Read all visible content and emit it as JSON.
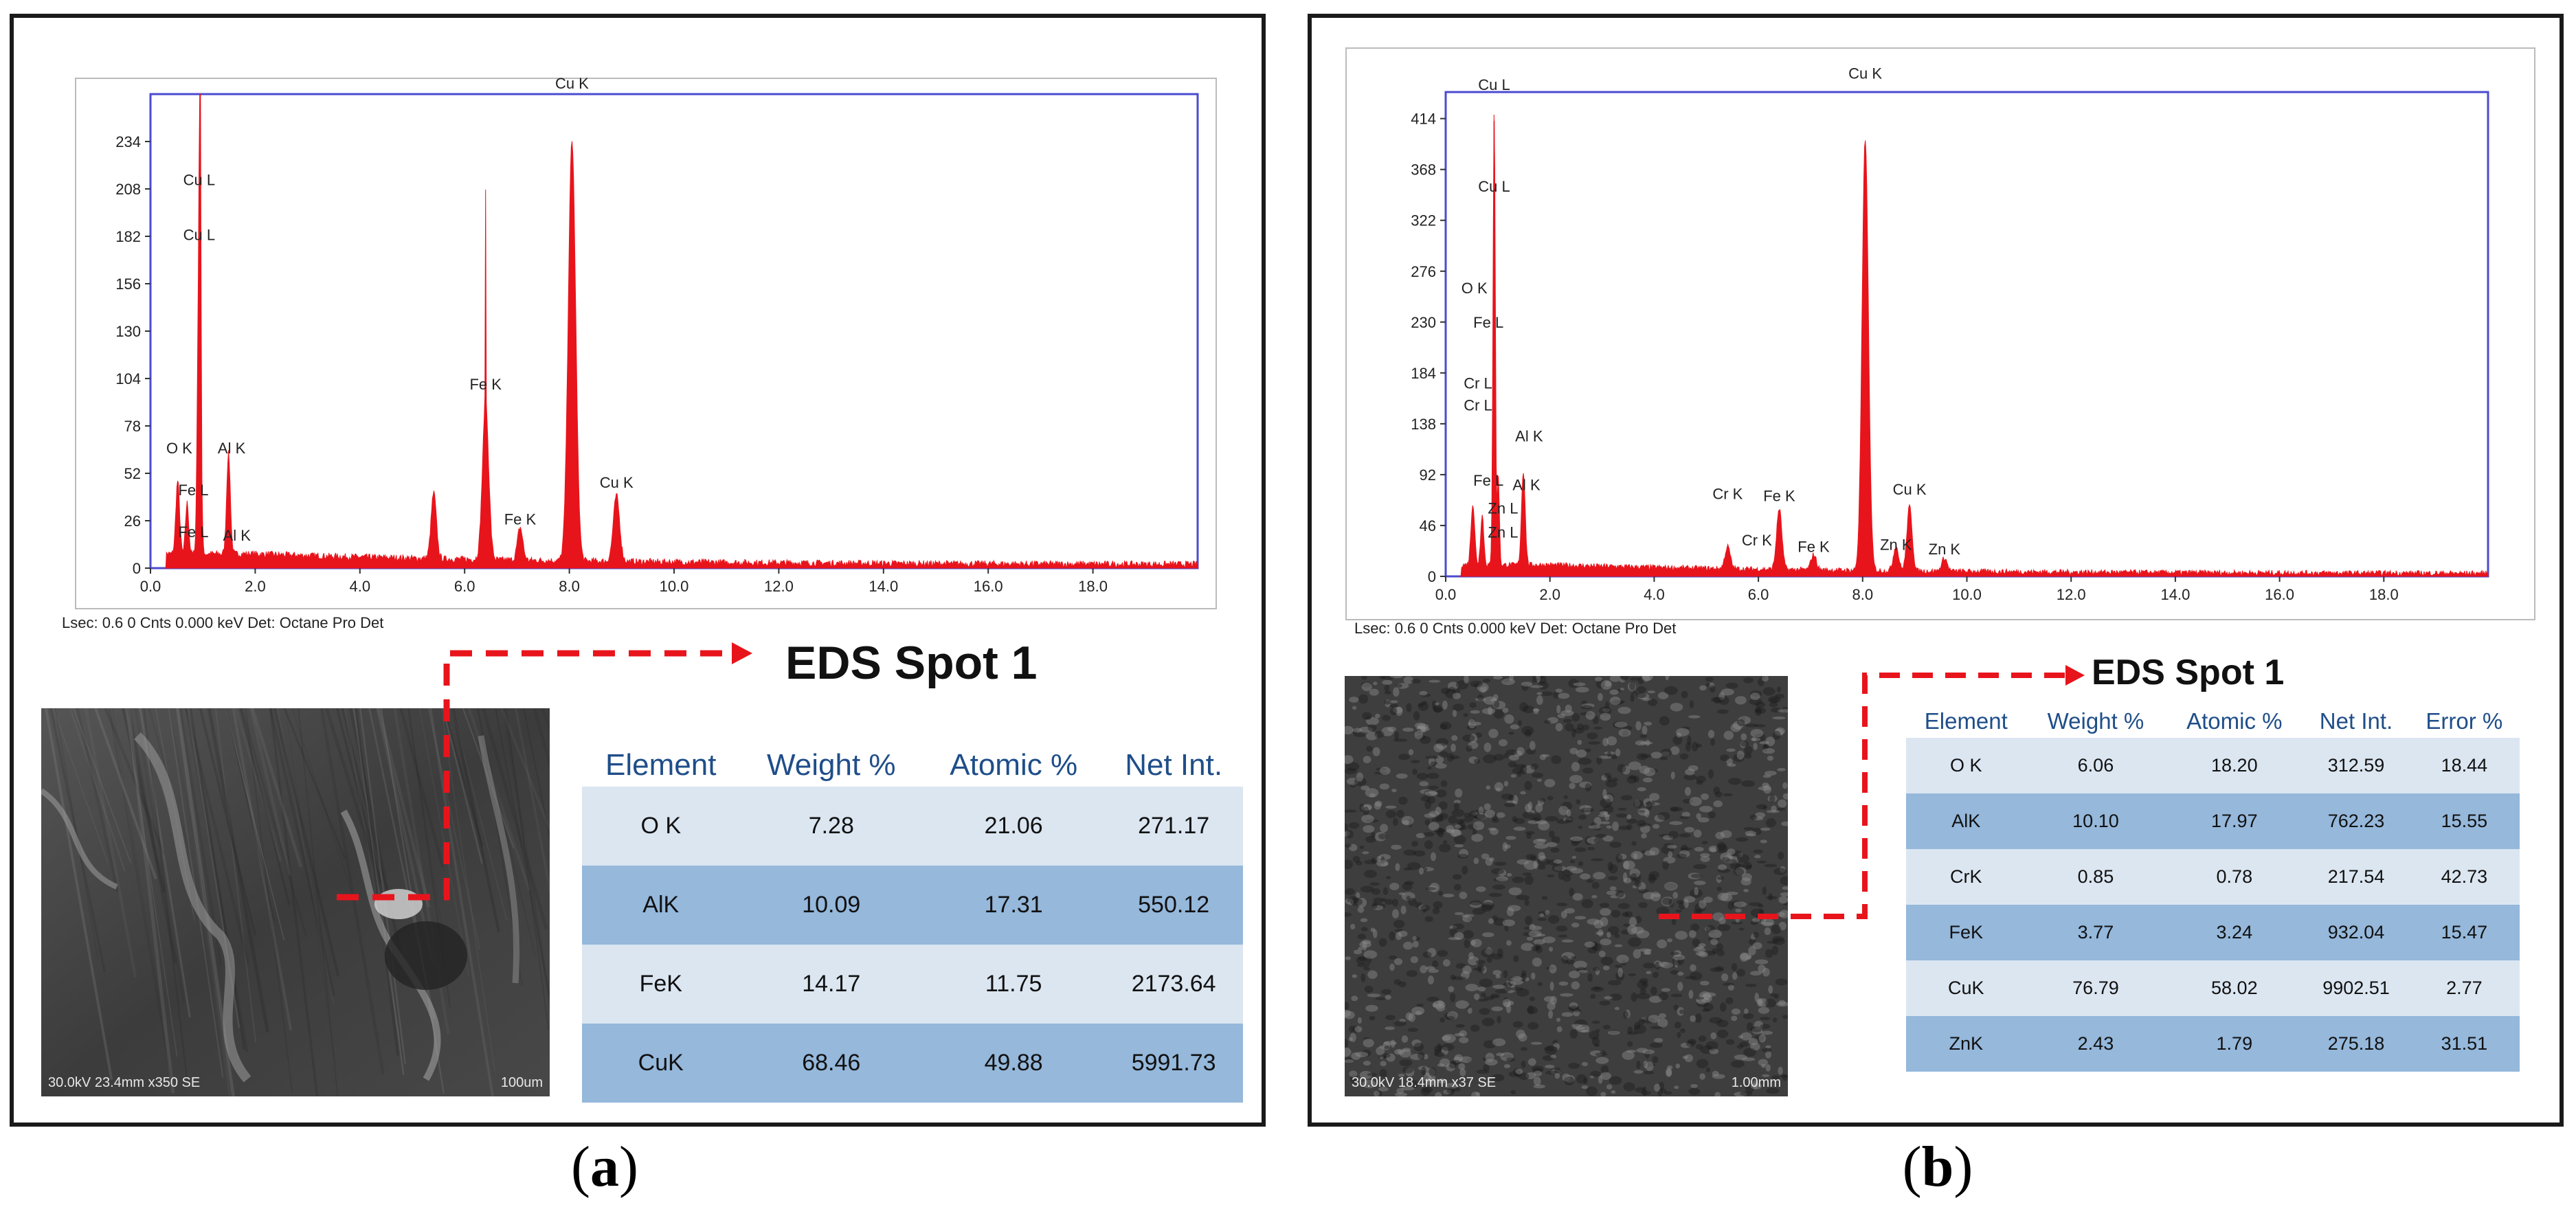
{
  "figure": {
    "panels": [
      {
        "caption_letter": "a",
        "detector_info": "Lsec: 0.6 0 Cnts  0.000 keV Det: Octane Pro Det",
        "spot_title": "EDS Spot 1",
        "sem_info": {
          "left": "30.0kV 23.4mm x350 SE",
          "right": "100um"
        },
        "table": {
          "headers": [
            "Element",
            "Weight %",
            "Atomic %",
            "Net Int."
          ],
          "rows": [
            [
              "O K",
              "7.28",
              "21.06",
              "271.17"
            ],
            [
              "AlK",
              "10.09",
              "17.31",
              "550.12"
            ],
            [
              "FeK",
              "14.17",
              "11.75",
              "2173.64"
            ],
            [
              "CuK",
              "68.46",
              "49.88",
              "5991.73"
            ]
          ]
        }
      },
      {
        "caption_letter": "b",
        "detector_info": "Lsec: 0.6 0 Cnts  0.000 keV Det: Octane Pro Det",
        "spot_title": "EDS Spot 1",
        "sem_info": {
          "left": "30.0kV 18.4mm x37 SE",
          "right": "1.00mm"
        },
        "table": {
          "headers": [
            "Element",
            "Weight %",
            "Atomic %",
            "Net Int.",
            "Error %"
          ],
          "rows": [
            [
              "O K",
              "6.06",
              "18.20",
              "312.59",
              "18.44"
            ],
            [
              "AlK",
              "10.10",
              "17.97",
              "762.23",
              "15.55"
            ],
            [
              "CrK",
              "0.85",
              "0.78",
              "217.54",
              "42.73"
            ],
            [
              "FeK",
              "3.77",
              "3.24",
              "932.04",
              "15.47"
            ],
            [
              "CuK",
              "76.79",
              "58.02",
              "9902.51",
              "2.77"
            ],
            [
              "ZnK",
              "2.43",
              "1.79",
              "275.18",
              "31.51"
            ]
          ]
        }
      }
    ]
  },
  "colors": {
    "spectrum": "#e8141c",
    "frame": "#4b4bd0",
    "arrow": "#e8141c",
    "header_text": "#1f4e89",
    "row_light": "#dbe6f1",
    "row_dark": "#95b8db"
  },
  "chart_data": [
    {
      "type": "area",
      "xlim": [
        0,
        20
      ],
      "ylim": [
        0,
        260
      ],
      "x_ticks": [
        "0.0",
        "2.0",
        "4.0",
        "6.0",
        "8.0",
        "10.0",
        "12.0",
        "14.0",
        "16.0",
        "18.0"
      ],
      "y_ticks": [
        "0",
        "26",
        "52",
        "78",
        "104",
        "130",
        "156",
        "182",
        "208",
        "234"
      ],
      "peaks": [
        {
          "x": 0.52,
          "y": 40,
          "w": 0.035
        },
        {
          "x": 0.7,
          "y": 28,
          "w": 0.03
        },
        {
          "x": 0.93,
          "y": 178,
          "w": 0.03
        },
        {
          "x": 0.95,
          "y": 190,
          "w": 0.012
        },
        {
          "x": 1.49,
          "y": 55,
          "w": 0.035
        },
        {
          "x": 5.41,
          "y": 36,
          "w": 0.05
        },
        {
          "x": 6.4,
          "y": 84,
          "w": 0.06
        },
        {
          "x": 6.4,
          "y": 118,
          "w": 0.006
        },
        {
          "x": 7.06,
          "y": 18,
          "w": 0.05
        },
        {
          "x": 8.05,
          "y": 230,
          "w": 0.07
        },
        {
          "x": 8.9,
          "y": 36,
          "w": 0.06
        }
      ],
      "background": 6,
      "annotations": [
        {
          "text": "Cu L",
          "x": 0.93,
          "y": 210
        },
        {
          "text": "Cu L",
          "x": 0.93,
          "y": 180
        },
        {
          "text": "O  K",
          "x": 0.55,
          "y": 63
        },
        {
          "text": "Fe L",
          "x": 0.82,
          "y": 40
        },
        {
          "text": "Fe L",
          "x": 0.82,
          "y": 17
        },
        {
          "text": "Al K",
          "x": 1.55,
          "y": 63
        },
        {
          "text": "Al K",
          "x": 1.65,
          "y": 15
        },
        {
          "text": "Fe K",
          "x": 6.4,
          "y": 98
        },
        {
          "text": "Fe K",
          "x": 7.06,
          "y": 24
        },
        {
          "text": "Cu K",
          "x": 8.05,
          "y": 263
        },
        {
          "text": "Cu K",
          "x": 8.9,
          "y": 44
        }
      ]
    },
    {
      "type": "area",
      "xlim": [
        0,
        20
      ],
      "ylim": [
        0,
        438
      ],
      "x_ticks": [
        "0.0",
        "2.0",
        "4.0",
        "6.0",
        "8.0",
        "10.0",
        "12.0",
        "14.0",
        "16.0",
        "18.0"
      ],
      "y_ticks": [
        "0",
        "46",
        "92",
        "138",
        "184",
        "230",
        "276",
        "322",
        "368",
        "414"
      ],
      "peaks": [
        {
          "x": 0.52,
          "y": 55,
          "w": 0.035
        },
        {
          "x": 0.7,
          "y": 45,
          "w": 0.03
        },
        {
          "x": 0.93,
          "y": 412,
          "w": 0.022
        },
        {
          "x": 1.01,
          "y": 80,
          "w": 0.02
        },
        {
          "x": 1.49,
          "y": 85,
          "w": 0.035
        },
        {
          "x": 5.41,
          "y": 20,
          "w": 0.05
        },
        {
          "x": 6.4,
          "y": 55,
          "w": 0.05
        },
        {
          "x": 7.06,
          "y": 14,
          "w": 0.05
        },
        {
          "x": 8.05,
          "y": 390,
          "w": 0.06
        },
        {
          "x": 8.64,
          "y": 22,
          "w": 0.05
        },
        {
          "x": 8.9,
          "y": 58,
          "w": 0.05
        },
        {
          "x": 9.57,
          "y": 12,
          "w": 0.05
        }
      ],
      "background": 8,
      "annotations": [
        {
          "text": "Cu L",
          "x": 0.93,
          "y": 440
        },
        {
          "text": "Cu L",
          "x": 0.93,
          "y": 348
        },
        {
          "text": "O  K",
          "x": 0.55,
          "y": 256
        },
        {
          "text": "Fe L",
          "x": 0.82,
          "y": 225
        },
        {
          "text": "Cr L",
          "x": 0.62,
          "y": 170
        },
        {
          "text": "Cr L",
          "x": 0.62,
          "y": 150
        },
        {
          "text": "Al K",
          "x": 1.6,
          "y": 122
        },
        {
          "text": "Fe L",
          "x": 0.82,
          "y": 82
        },
        {
          "text": "Al K",
          "x": 1.55,
          "y": 78
        },
        {
          "text": "Zn L",
          "x": 1.1,
          "y": 57
        },
        {
          "text": "Zn L",
          "x": 1.1,
          "y": 35
        },
        {
          "text": "Cr K",
          "x": 5.41,
          "y": 70
        },
        {
          "text": "Fe K",
          "x": 6.4,
          "y": 68
        },
        {
          "text": "Cr K",
          "x": 5.97,
          "y": 28
        },
        {
          "text": "Fe K",
          "x": 7.06,
          "y": 22
        },
        {
          "text": "Cu K",
          "x": 8.05,
          "y": 450
        },
        {
          "text": "Cu K",
          "x": 8.9,
          "y": 74
        },
        {
          "text": "Zn K",
          "x": 8.64,
          "y": 24
        },
        {
          "text": "Zn K",
          "x": 9.57,
          "y": 20
        }
      ]
    }
  ]
}
